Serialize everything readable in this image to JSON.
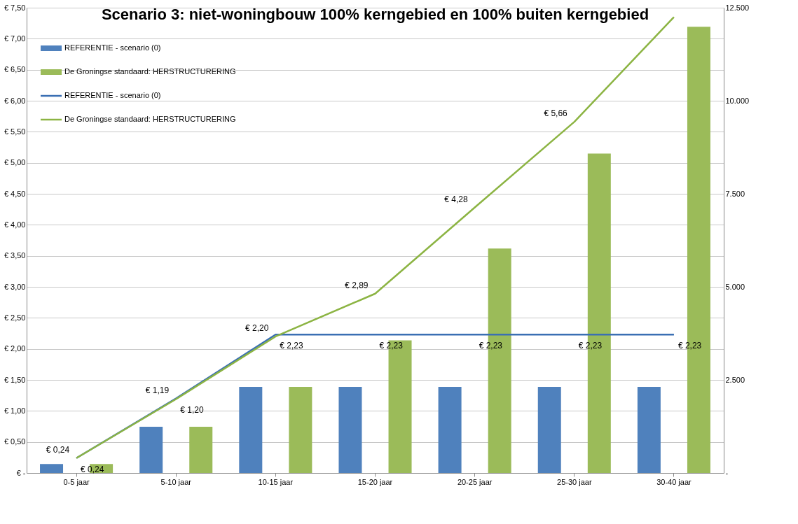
{
  "chart_data": {
    "type": "bar",
    "title": "Scenario 3: niet-woningbouw 100% kerngebied en 100% buiten kerngebied",
    "categories": [
      "0-5 jaar",
      "5-10 jaar",
      "10-15 jaar",
      "15-20 jaar",
      "20-25 jaar",
      "25-30 jaar",
      "30-40 jaar"
    ],
    "series": [
      {
        "name": "REFERENTIE - scenario (0)",
        "type": "bar",
        "axis": "y2",
        "color": "#4f81bd",
        "values": [
          240,
          1240,
          2310,
          2310,
          2310,
          2310,
          2310
        ]
      },
      {
        "name": "De Groningse standaard: HERSTRUCTURERING",
        "type": "bar",
        "axis": "y2",
        "color": "#9bbb59",
        "values": [
          240,
          1240,
          2310,
          3560,
          6030,
          8580,
          11990
        ]
      },
      {
        "name": "REFERENTIE - scenario (0)",
        "type": "line",
        "axis": "y",
        "color": "#3a6fb3",
        "values": [
          0.24,
          1.2,
          2.23,
          2.23,
          2.23,
          2.23,
          2.23
        ],
        "value_labels": [
          "€ 0,24",
          "€ 1,20",
          "€ 2,23",
          "€ 2,23",
          "€ 2,23",
          "€ 2,23",
          "€ 2,23"
        ]
      },
      {
        "name": "De Groningse standaard: HERSTRUCTURERING",
        "type": "line",
        "axis": "y",
        "color": "#8cb443",
        "values": [
          0.24,
          1.19,
          2.2,
          2.89,
          4.28,
          5.66,
          7.35
        ],
        "value_labels": [
          "€ 0,24",
          "€ 1,19",
          "€ 2,20",
          "€ 2,89",
          "€ 4,28",
          "€ 5,66",
          null
        ]
      }
    ],
    "ylim": [
      0,
      7.5
    ],
    "yticks": [
      {
        "value": 0,
        "label": "€ -"
      },
      {
        "value": 0.5,
        "label": "€ 0,50"
      },
      {
        "value": 1,
        "label": "€ 1,00"
      },
      {
        "value": 1.5,
        "label": "€ 1,50"
      },
      {
        "value": 2,
        "label": "€ 2,00"
      },
      {
        "value": 2.5,
        "label": "€ 2,50"
      },
      {
        "value": 3,
        "label": "€ 3,00"
      },
      {
        "value": 3.5,
        "label": "€ 3,50"
      },
      {
        "value": 4,
        "label": "€ 4,00"
      },
      {
        "value": 4.5,
        "label": "€ 4,50"
      },
      {
        "value": 5,
        "label": "€ 5,00"
      },
      {
        "value": 5.5,
        "label": "€ 5,50"
      },
      {
        "value": 6,
        "label": "€ 6,00"
      },
      {
        "value": 6.5,
        "label": "€ 6,50"
      },
      {
        "value": 7,
        "label": "€ 7,00"
      },
      {
        "value": 7.5,
        "label": "€ 7,50"
      }
    ],
    "y2lim": [
      0,
      12500
    ],
    "y2ticks": [
      {
        "value": 0,
        "label": "-"
      },
      {
        "value": 2500,
        "label": "2.500"
      },
      {
        "value": 5000,
        "label": "5.000"
      },
      {
        "value": 7500,
        "label": "7.500"
      },
      {
        "value": 10000,
        "label": "10.000"
      },
      {
        "value": 12500,
        "label": "12.500"
      }
    ],
    "grid": "y",
    "legend": "top left",
    "line_style": "solid",
    "marker": "none"
  }
}
